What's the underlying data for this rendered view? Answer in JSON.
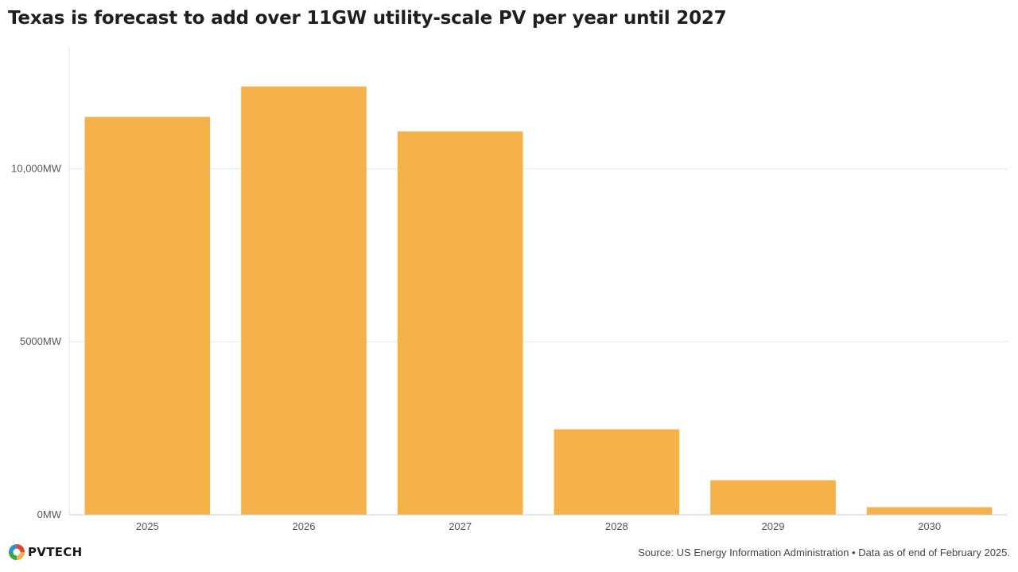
{
  "title": "Texas is forecast to add over 11GW utility-scale PV per year until 2027",
  "footer": {
    "source": "Source: US Energy Information Administration • Data as of end of February 2025.",
    "logo_text": "PVTECH"
  },
  "colors": {
    "bar": "#f6b24a",
    "grid": "#e6e6e6",
    "axis": "#cccccc"
  },
  "chart_data": {
    "type": "bar",
    "title": "Texas is forecast to add over 11GW utility-scale PV per year until 2027",
    "xlabel": "",
    "ylabel": "",
    "categories": [
      "2025",
      "2026",
      "2027",
      "2028",
      "2029",
      "2030"
    ],
    "values": [
      11500,
      12380,
      11080,
      2470,
      1000,
      220
    ],
    "ylim": [
      0,
      13500
    ],
    "y_ticks": [
      0,
      5000,
      10000
    ],
    "y_tick_labels": [
      "0MW",
      "5000MW",
      "10,000MW"
    ],
    "grid": true,
    "legend": "none"
  }
}
